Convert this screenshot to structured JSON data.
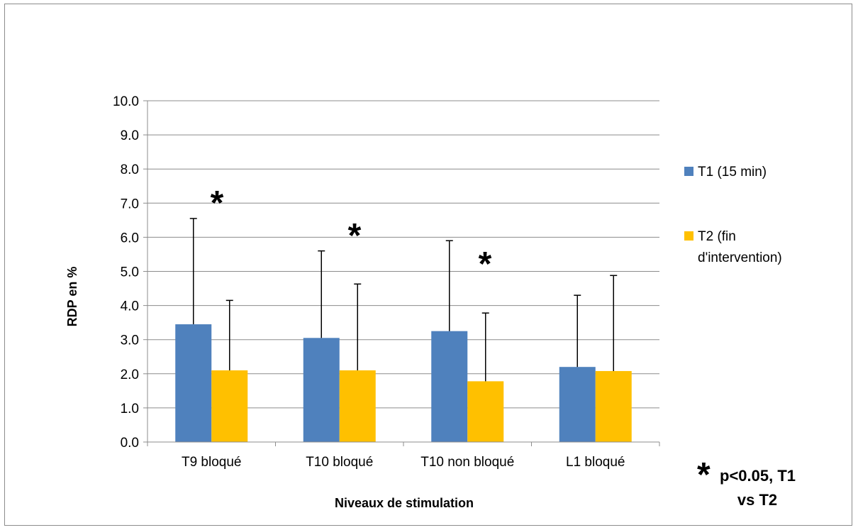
{
  "chart_data": {
    "type": "bar",
    "title": "",
    "xlabel": "Niveaux de stimulation",
    "ylabel": "RDP en %",
    "ylim": [
      0,
      10
    ],
    "yticks": [
      "0.0",
      "1.0",
      "2.0",
      "3.0",
      "4.0",
      "5.0",
      "6.0",
      "7.0",
      "8.0",
      "9.0",
      "10.0"
    ],
    "categories": [
      "T9 bloqué",
      "T10 bloqué",
      "T10 non bloqué",
      "L1 bloqué"
    ],
    "series": [
      {
        "name": "T1 (15 min)",
        "color": "#4f81bd",
        "values": [
          3.45,
          3.05,
          3.25,
          2.2
        ],
        "error": [
          3.1,
          2.55,
          2.65,
          2.1
        ]
      },
      {
        "name": "T2 (fin d'intervention)",
        "color": "#ffc000",
        "values": [
          2.1,
          2.1,
          1.78,
          2.08
        ],
        "error": [
          2.05,
          2.53,
          2.0,
          2.8
        ]
      }
    ],
    "legend_position": "right",
    "grid": true,
    "significance_markers": [
      "*",
      "*",
      "*"
    ],
    "significance_note": "p<0.05, T1 vs T2",
    "significance_note_line1": "p<0.05, T1",
    "significance_note_line2": "vs T2",
    "significance_symbol": "*"
  }
}
